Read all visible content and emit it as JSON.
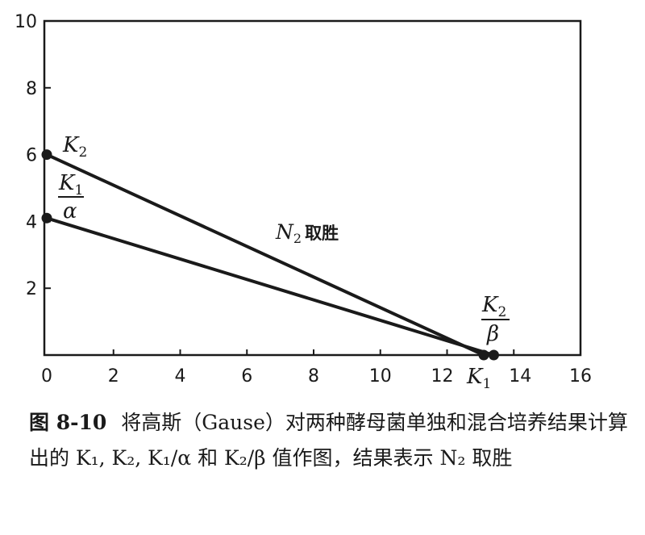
{
  "chart_data": {
    "type": "line",
    "xlim": [
      0,
      16
    ],
    "ylim": [
      0,
      10
    ],
    "x_ticks": [
      "0",
      "2",
      "4",
      "6",
      "8",
      "10",
      "12",
      "14",
      "16"
    ],
    "y_ticks": [
      "2",
      "4",
      "6",
      "8",
      "10"
    ],
    "grid": false,
    "series": [
      {
        "points": [
          [
            0,
            6
          ],
          [
            13.1,
            0
          ]
        ]
      },
      {
        "points": [
          [
            0,
            4.1
          ],
          [
            13.4,
            0
          ]
        ]
      }
    ],
    "labels": {
      "k2_main": "K",
      "k2_sub": "2",
      "k1_over_alpha_num": "K",
      "k1_over_alpha_num_sub": "1",
      "k1_over_alpha_den": "α",
      "k2_over_beta_num": "K",
      "k2_over_beta_num_sub": "2",
      "k2_over_beta_den": "β",
      "k1_axis_main": "K",
      "k1_axis_sub": "1",
      "annotation_main": "N",
      "annotation_sub": "2",
      "annotation_text": "取胜"
    }
  },
  "caption": {
    "number": "图 8-10",
    "text": "将高斯（Gause）对两种酵母菌单独和混合培养结果计算出的 K₁, K₂, K₁/α 和 K₂/β 值作图，结果表示 N₂ 取胜"
  }
}
